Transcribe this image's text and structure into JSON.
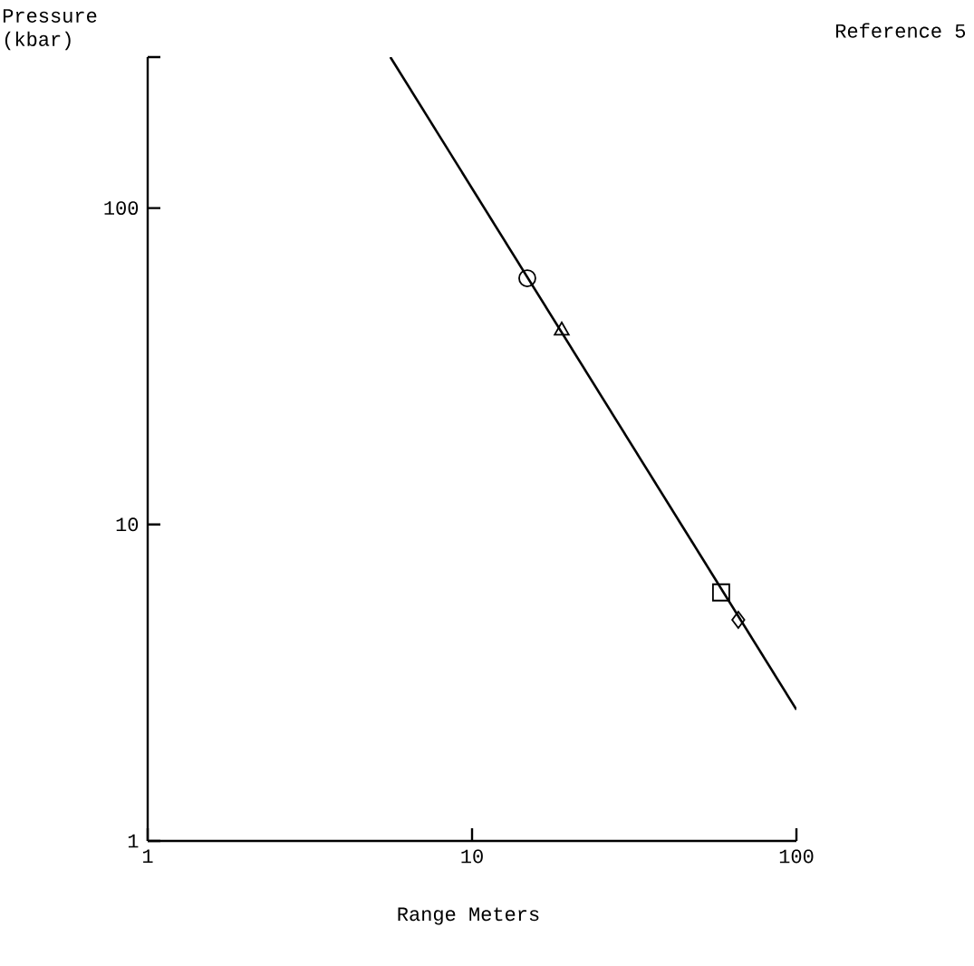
{
  "chart_data": {
    "type": "line",
    "xlabel": "Range Meters",
    "ylabel": "Pressure (kbar)",
    "log": "xy",
    "grid": false,
    "annotations": [
      "Reference 5"
    ],
    "xlim": [
      1,
      100
    ],
    "xticks": [
      1,
      10,
      100
    ],
    "ylim": [
      1,
      300
    ],
    "yticks": [
      1,
      10,
      100,
      {
        "value": 300,
        "label": null
      }
    ],
    "series": [
      {
        "color": "#000000",
        "marker": "none",
        "x": [
          5.6,
          100
        ],
        "values": [
          300,
          2.6
        ]
      },
      {
        "type": "scatter",
        "color": "#000000",
        "marker": "circle",
        "x": [
          14.8
        ],
        "values": [
          60
        ]
      },
      {
        "type": "scatter",
        "color": "#000000",
        "marker": "triangle",
        "x": [
          18.9
        ],
        "values": [
          41
        ]
      },
      {
        "type": "scatter",
        "color": "#000000",
        "marker": "square",
        "x": [
          58.6
        ],
        "values": [
          6.1
        ]
      },
      {
        "type": "scatter",
        "color": "#000000",
        "marker": "diamond",
        "x": [
          66.2
        ],
        "values": [
          5.0
        ]
      }
    ]
  }
}
